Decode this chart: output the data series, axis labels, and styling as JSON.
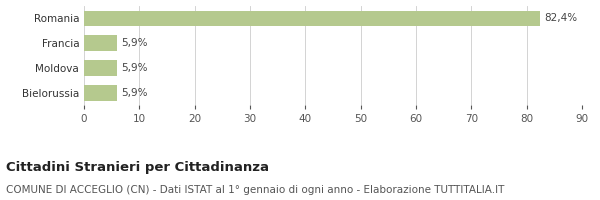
{
  "categories": [
    "Romania",
    "Francia",
    "Moldova",
    "Bielorussia"
  ],
  "values": [
    82.4,
    5.9,
    5.9,
    5.9
  ],
  "labels": [
    "82,4%",
    "5,9%",
    "5,9%",
    "5,9%"
  ],
  "bar_color": "#b5c98e",
  "background_color": "#ffffff",
  "title_bold": "Cittadini Stranieri per Cittadinanza",
  "subtitle": "COMUNE DI ACCEGLIO (CN) - Dati ISTAT al 1° gennaio di ogni anno - Elaborazione TUTTITALIA.IT",
  "xlim": [
    0,
    90
  ],
  "xticks": [
    0,
    10,
    20,
    30,
    40,
    50,
    60,
    70,
    80,
    90
  ],
  "grid_color": "#cccccc",
  "title_fontsize": 9.5,
  "subtitle_fontsize": 7.5,
  "label_fontsize": 7.5,
  "tick_fontsize": 7.5,
  "ytick_fontsize": 7.5,
  "bar_height": 0.62
}
